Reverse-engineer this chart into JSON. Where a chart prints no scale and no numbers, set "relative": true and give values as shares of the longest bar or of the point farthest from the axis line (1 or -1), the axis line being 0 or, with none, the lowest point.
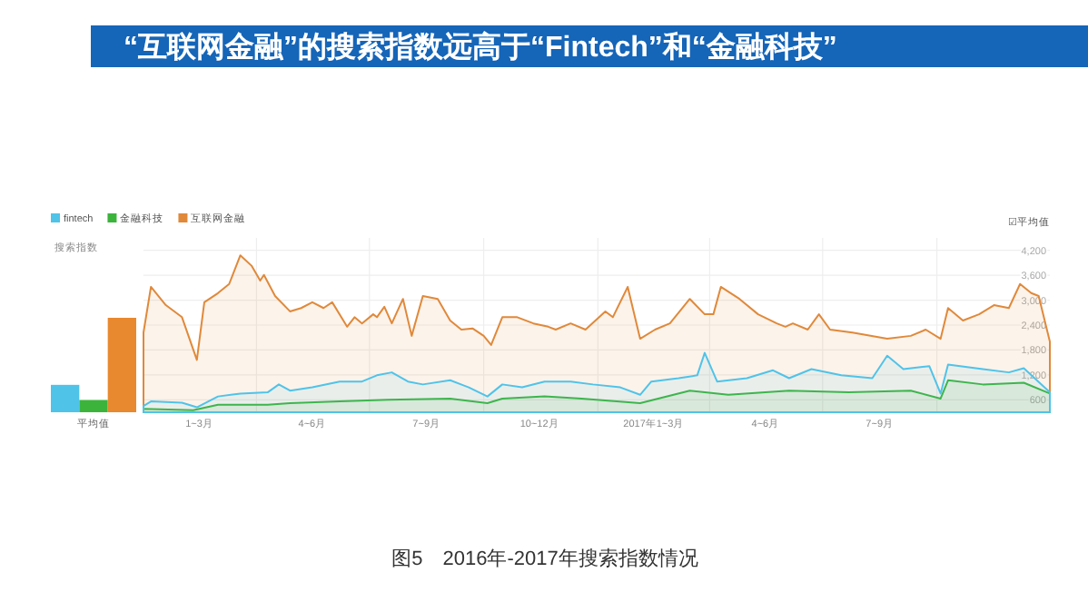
{
  "chart_data": [
    {
      "type": "bar",
      "relative": true,
      "categories": [
        "平均值"
      ],
      "series": [
        {
          "color": "#4fc3e8",
          "values": [
            0.29
          ]
        },
        {
          "color": "#3cb43c",
          "values": [
            0.13
          ]
        },
        {
          "color": "#e8892f",
          "values": [
            1
          ]
        }
      ]
    },
    {
      "type": "area",
      "title": "“互联网金融”的搜索指数远高于“Fintech”和“金融科技”",
      "ylabel": "搜索指数",
      "legend": "top left",
      "grid": true,
      "annotations": [
        "☑平均值",
        "图5　2016年-2017年搜索指数情况"
      ],
      "xlim": [
        "2016-01-01",
        "2017-12-31"
      ],
      "xticks": [
        {
          "value": "2016-02-15",
          "label": "1~3月"
        },
        {
          "value": "2016-04-01",
          "label": null
        },
        {
          "value": "2016-05-16",
          "label": "4~6月"
        },
        {
          "value": "2016-07-01",
          "label": null
        },
        {
          "value": "2016-08-16",
          "label": "7~9月"
        },
        {
          "value": "2016-10-01",
          "label": null
        },
        {
          "value": "2016-11-15",
          "label": "10~12月"
        },
        {
          "value": "2017-01-01",
          "label": null
        },
        {
          "value": "2017-02-15",
          "label": "2017年1~3月"
        },
        {
          "value": "2017-04-01",
          "label": null
        },
        {
          "value": "2017-05-16",
          "label": "4~6月"
        },
        {
          "value": "2017-07-01",
          "label": null
        },
        {
          "value": "2017-08-16",
          "label": "7~9月"
        },
        {
          "value": "2017-10-01",
          "label": null
        }
      ],
      "ylim": [
        300,
        4500
      ],
      "yticks": [
        600,
        {
          "value": 1200,
          "label": "1,200"
        },
        {
          "value": 1800,
          "label": "1,800"
        },
        {
          "value": 2400,
          "label": "2,400"
        },
        {
          "value": 3000,
          "label": "3,000"
        },
        {
          "value": 3600,
          "label": "3,600"
        },
        {
          "value": 4200,
          "label": "4,200"
        }
      ],
      "series": [
        {
          "name": "fintech",
          "color": "#4fc3e8",
          "x": [
            "2016-01-01",
            "2016-01-07",
            "2016-02-01",
            "2016-02-13",
            "2016-03-01",
            "2016-03-19",
            "2016-04-10",
            "2016-04-19",
            "2016-04-28",
            "2016-05-16",
            "2016-06-07",
            "2016-06-25",
            "2016-07-07",
            "2016-07-19",
            "2016-08-01",
            "2016-08-13",
            "2016-09-04",
            "2016-09-19",
            "2016-10-04",
            "2016-10-16",
            "2016-11-01",
            "2016-11-19",
            "2016-12-10",
            "2016-12-28",
            "2017-01-19",
            "2017-02-04",
            "2017-02-13",
            "2017-03-07",
            "2017-03-22",
            "2017-03-28",
            "2017-04-07",
            "2017-05-01",
            "2017-05-22",
            "2017-06-04",
            "2017-06-22",
            "2017-07-16",
            "2017-08-10",
            "2017-08-22",
            "2017-09-04",
            "2017-09-25",
            "2017-10-04",
            "2017-10-10",
            "2017-11-07",
            "2017-11-28",
            "2017-12-10",
            "2017-12-31"
          ],
          "values": [
            450,
            560,
            530,
            420,
            680,
            750,
            780,
            970,
            820,
            900,
            1040,
            1040,
            1190,
            1260,
            1040,
            970,
            1070,
            900,
            680,
            970,
            900,
            1040,
            1040,
            970,
            900,
            720,
            1040,
            1120,
            1190,
            1730,
            1040,
            1120,
            1310,
            1120,
            1340,
            1190,
            1120,
            1660,
            1340,
            1410,
            750,
            1450,
            1340,
            1260,
            1360,
            780
          ]
        },
        {
          "name": "金融科技",
          "color": "#3cb43c",
          "x": [
            "2016-01-01",
            "2016-02-10",
            "2016-03-01",
            "2016-04-10",
            "2016-04-28",
            "2016-06-07",
            "2016-07-16",
            "2016-09-04",
            "2016-10-04",
            "2016-10-16",
            "2016-11-19",
            "2016-12-19",
            "2017-02-04",
            "2017-03-16",
            "2017-04-16",
            "2017-06-04",
            "2017-07-22",
            "2017-09-10",
            "2017-10-04",
            "2017-10-10",
            "2017-11-07",
            "2017-12-10",
            "2017-12-31"
          ],
          "values": [
            380,
            350,
            480,
            480,
            520,
            560,
            600,
            630,
            520,
            630,
            680,
            630,
            520,
            820,
            720,
            820,
            780,
            820,
            630,
            1070,
            970,
            1010,
            750
          ]
        },
        {
          "name": "互联网金融",
          "color": "#e0893a",
          "x": [
            "2016-01-01",
            "2016-01-07",
            "2016-01-19",
            "2016-02-01",
            "2016-02-13",
            "2016-02-19",
            "2016-03-01",
            "2016-03-10",
            "2016-03-19",
            "2016-03-28",
            "2016-04-04",
            "2016-04-07",
            "2016-04-16",
            "2016-04-28",
            "2016-05-07",
            "2016-05-16",
            "2016-05-25",
            "2016-06-01",
            "2016-06-13",
            "2016-06-19",
            "2016-06-25",
            "2016-07-04",
            "2016-07-07",
            "2016-07-13",
            "2016-07-19",
            "2016-07-28",
            "2016-08-04",
            "2016-08-13",
            "2016-08-25",
            "2016-09-04",
            "2016-09-13",
            "2016-09-22",
            "2016-10-01",
            "2016-10-07",
            "2016-10-16",
            "2016-10-28",
            "2016-11-10",
            "2016-11-22",
            "2016-11-28",
            "2016-12-10",
            "2016-12-22",
            "2017-01-07",
            "2017-01-13",
            "2017-01-25",
            "2017-02-04",
            "2017-02-16",
            "2017-02-28",
            "2017-03-16",
            "2017-03-28",
            "2017-04-04",
            "2017-04-10",
            "2017-04-25",
            "2017-05-10",
            "2017-05-25",
            "2017-06-01",
            "2017-06-07",
            "2017-06-19",
            "2017-06-28",
            "2017-07-07",
            "2017-07-25",
            "2017-08-22",
            "2017-09-10",
            "2017-09-22",
            "2017-10-04",
            "2017-10-10",
            "2017-10-22",
            "2017-11-04",
            "2017-11-16",
            "2017-11-28",
            "2017-12-07",
            "2017-12-16",
            "2017-12-22",
            "2017-12-31"
          ],
          "values": [
            2220,
            3320,
            2880,
            2590,
            1560,
            2950,
            3170,
            3390,
            4080,
            3830,
            3470,
            3610,
            3100,
            2730,
            2810,
            2950,
            2810,
            2950,
            2360,
            2590,
            2440,
            2660,
            2590,
            2840,
            2440,
            3030,
            2140,
            3100,
            3030,
            2510,
            2290,
            2320,
            2140,
            1920,
            2590,
            2590,
            2440,
            2360,
            2290,
            2440,
            2290,
            2730,
            2590,
            3320,
            2070,
            2290,
            2440,
            3030,
            2660,
            2660,
            3320,
            3030,
            2660,
            2440,
            2360,
            2440,
            2290,
            2660,
            2290,
            2220,
            2070,
            2140,
            2290,
            2070,
            2810,
            2510,
            2660,
            2880,
            2810,
            3390,
            3170,
            3100,
            2000
          ]
        }
      ]
    }
  ]
}
